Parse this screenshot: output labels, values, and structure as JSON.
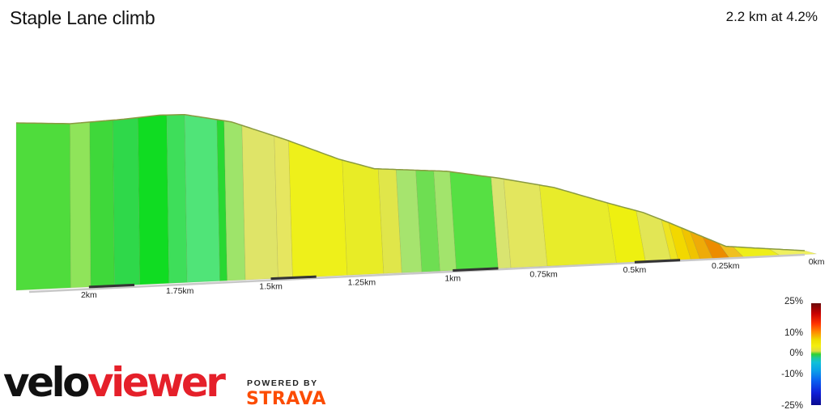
{
  "title": "Staple Lane climb",
  "summary": "2.2 km at 4.2%",
  "chart_data": {
    "type": "area",
    "title": "Staple Lane climb",
    "subtitle": "2.2 km at 4.2%",
    "xlabel": "",
    "ylabel": "",
    "x_unit": "km",
    "x_reversed": true,
    "xlim": [
      0,
      2.2
    ],
    "tick_labels": [
      "2km",
      "1.75km",
      "1.5km",
      "1.25km",
      "1km",
      "0.75km",
      "0.5km",
      "0.25km",
      "0km"
    ],
    "tick_values": [
      2.0,
      1.75,
      1.5,
      1.25,
      1.0,
      0.75,
      0.5,
      0.25,
      0.0
    ],
    "profile": {
      "distance_km": [
        2.2,
        2.05,
        1.9,
        1.8,
        1.73,
        1.6,
        1.45,
        1.3,
        1.2,
        1.1,
        1.0,
        0.85,
        0.7,
        0.55,
        0.45,
        0.38,
        0.3,
        0.22,
        0.15,
        0.0
      ],
      "relative_height": [
        0.58,
        0.57,
        0.585,
        0.6,
        0.6,
        0.56,
        0.47,
        0.37,
        0.32,
        0.31,
        0.3,
        0.26,
        0.21,
        0.13,
        0.08,
        0.03,
        -0.03,
        -0.09,
        -0.1,
        -0.12
      ]
    },
    "segments": [
      {
        "from_km": 2.2,
        "to_km": 2.05,
        "color": "#4fdc3c"
      },
      {
        "from_km": 2.05,
        "to_km": 1.995,
        "color": "#8fe45a"
      },
      {
        "from_km": 1.995,
        "to_km": 1.93,
        "color": "#3fd83a"
      },
      {
        "from_km": 1.93,
        "to_km": 1.86,
        "color": "#2fd84a"
      },
      {
        "from_km": 1.86,
        "to_km": 1.78,
        "color": "#10dc22"
      },
      {
        "from_km": 1.78,
        "to_km": 1.73,
        "color": "#3ede5a"
      },
      {
        "from_km": 1.73,
        "to_km": 1.64,
        "color": "#50e478"
      },
      {
        "from_km": 1.64,
        "to_km": 1.62,
        "color": "#28d832"
      },
      {
        "from_km": 1.62,
        "to_km": 1.57,
        "color": "#9ee46a"
      },
      {
        "from_km": 1.57,
        "to_km": 1.48,
        "color": "#dfe468"
      },
      {
        "from_km": 1.48,
        "to_km": 1.44,
        "color": "#e6e660"
      },
      {
        "from_km": 1.44,
        "to_km": 1.29,
        "color": "#eef01a"
      },
      {
        "from_km": 1.29,
        "to_km": 1.19,
        "color": "#e8ec26"
      },
      {
        "from_km": 1.19,
        "to_km": 1.14,
        "color": "#e0e64a"
      },
      {
        "from_km": 1.14,
        "to_km": 1.085,
        "color": "#a6e46e"
      },
      {
        "from_km": 1.085,
        "to_km": 1.035,
        "color": "#6ede52"
      },
      {
        "from_km": 1.035,
        "to_km": 0.99,
        "color": "#a2e46c"
      },
      {
        "from_km": 0.99,
        "to_km": 0.875,
        "color": "#56e043"
      },
      {
        "from_km": 0.875,
        "to_km": 0.84,
        "color": "#d9e470"
      },
      {
        "from_km": 0.84,
        "to_km": 0.74,
        "color": "#e3e65e"
      },
      {
        "from_km": 0.74,
        "to_km": 0.55,
        "color": "#e8ec2a"
      },
      {
        "from_km": 0.55,
        "to_km": 0.47,
        "color": "#eef010"
      },
      {
        "from_km": 0.47,
        "to_km": 0.4,
        "color": "#e2e655"
      },
      {
        "from_km": 0.4,
        "to_km": 0.38,
        "color": "#eee420"
      },
      {
        "from_km": 0.38,
        "to_km": 0.345,
        "color": "#f2d800"
      },
      {
        "from_km": 0.345,
        "to_km": 0.32,
        "color": "#f0c400"
      },
      {
        "from_km": 0.32,
        "to_km": 0.285,
        "color": "#eeab08"
      },
      {
        "from_km": 0.285,
        "to_km": 0.24,
        "color": "#ec8c00"
      },
      {
        "from_km": 0.24,
        "to_km": 0.2,
        "color": "#f0c020"
      },
      {
        "from_km": 0.2,
        "to_km": 0.1,
        "color": "#eeee1a"
      },
      {
        "from_km": 0.1,
        "to_km": 0.0,
        "color": "#eff060"
      }
    ],
    "legend": {
      "title": "",
      "labels": [
        "25%",
        "10%",
        "0%",
        "-10%",
        "-25%"
      ],
      "values": [
        25,
        10,
        0,
        -10,
        -25
      ],
      "placement": "bottom-right"
    }
  },
  "branding": {
    "velo": "velo",
    "viewer": "viewer",
    "powered_by": "POWERED BY",
    "strava": "STRAVA"
  }
}
